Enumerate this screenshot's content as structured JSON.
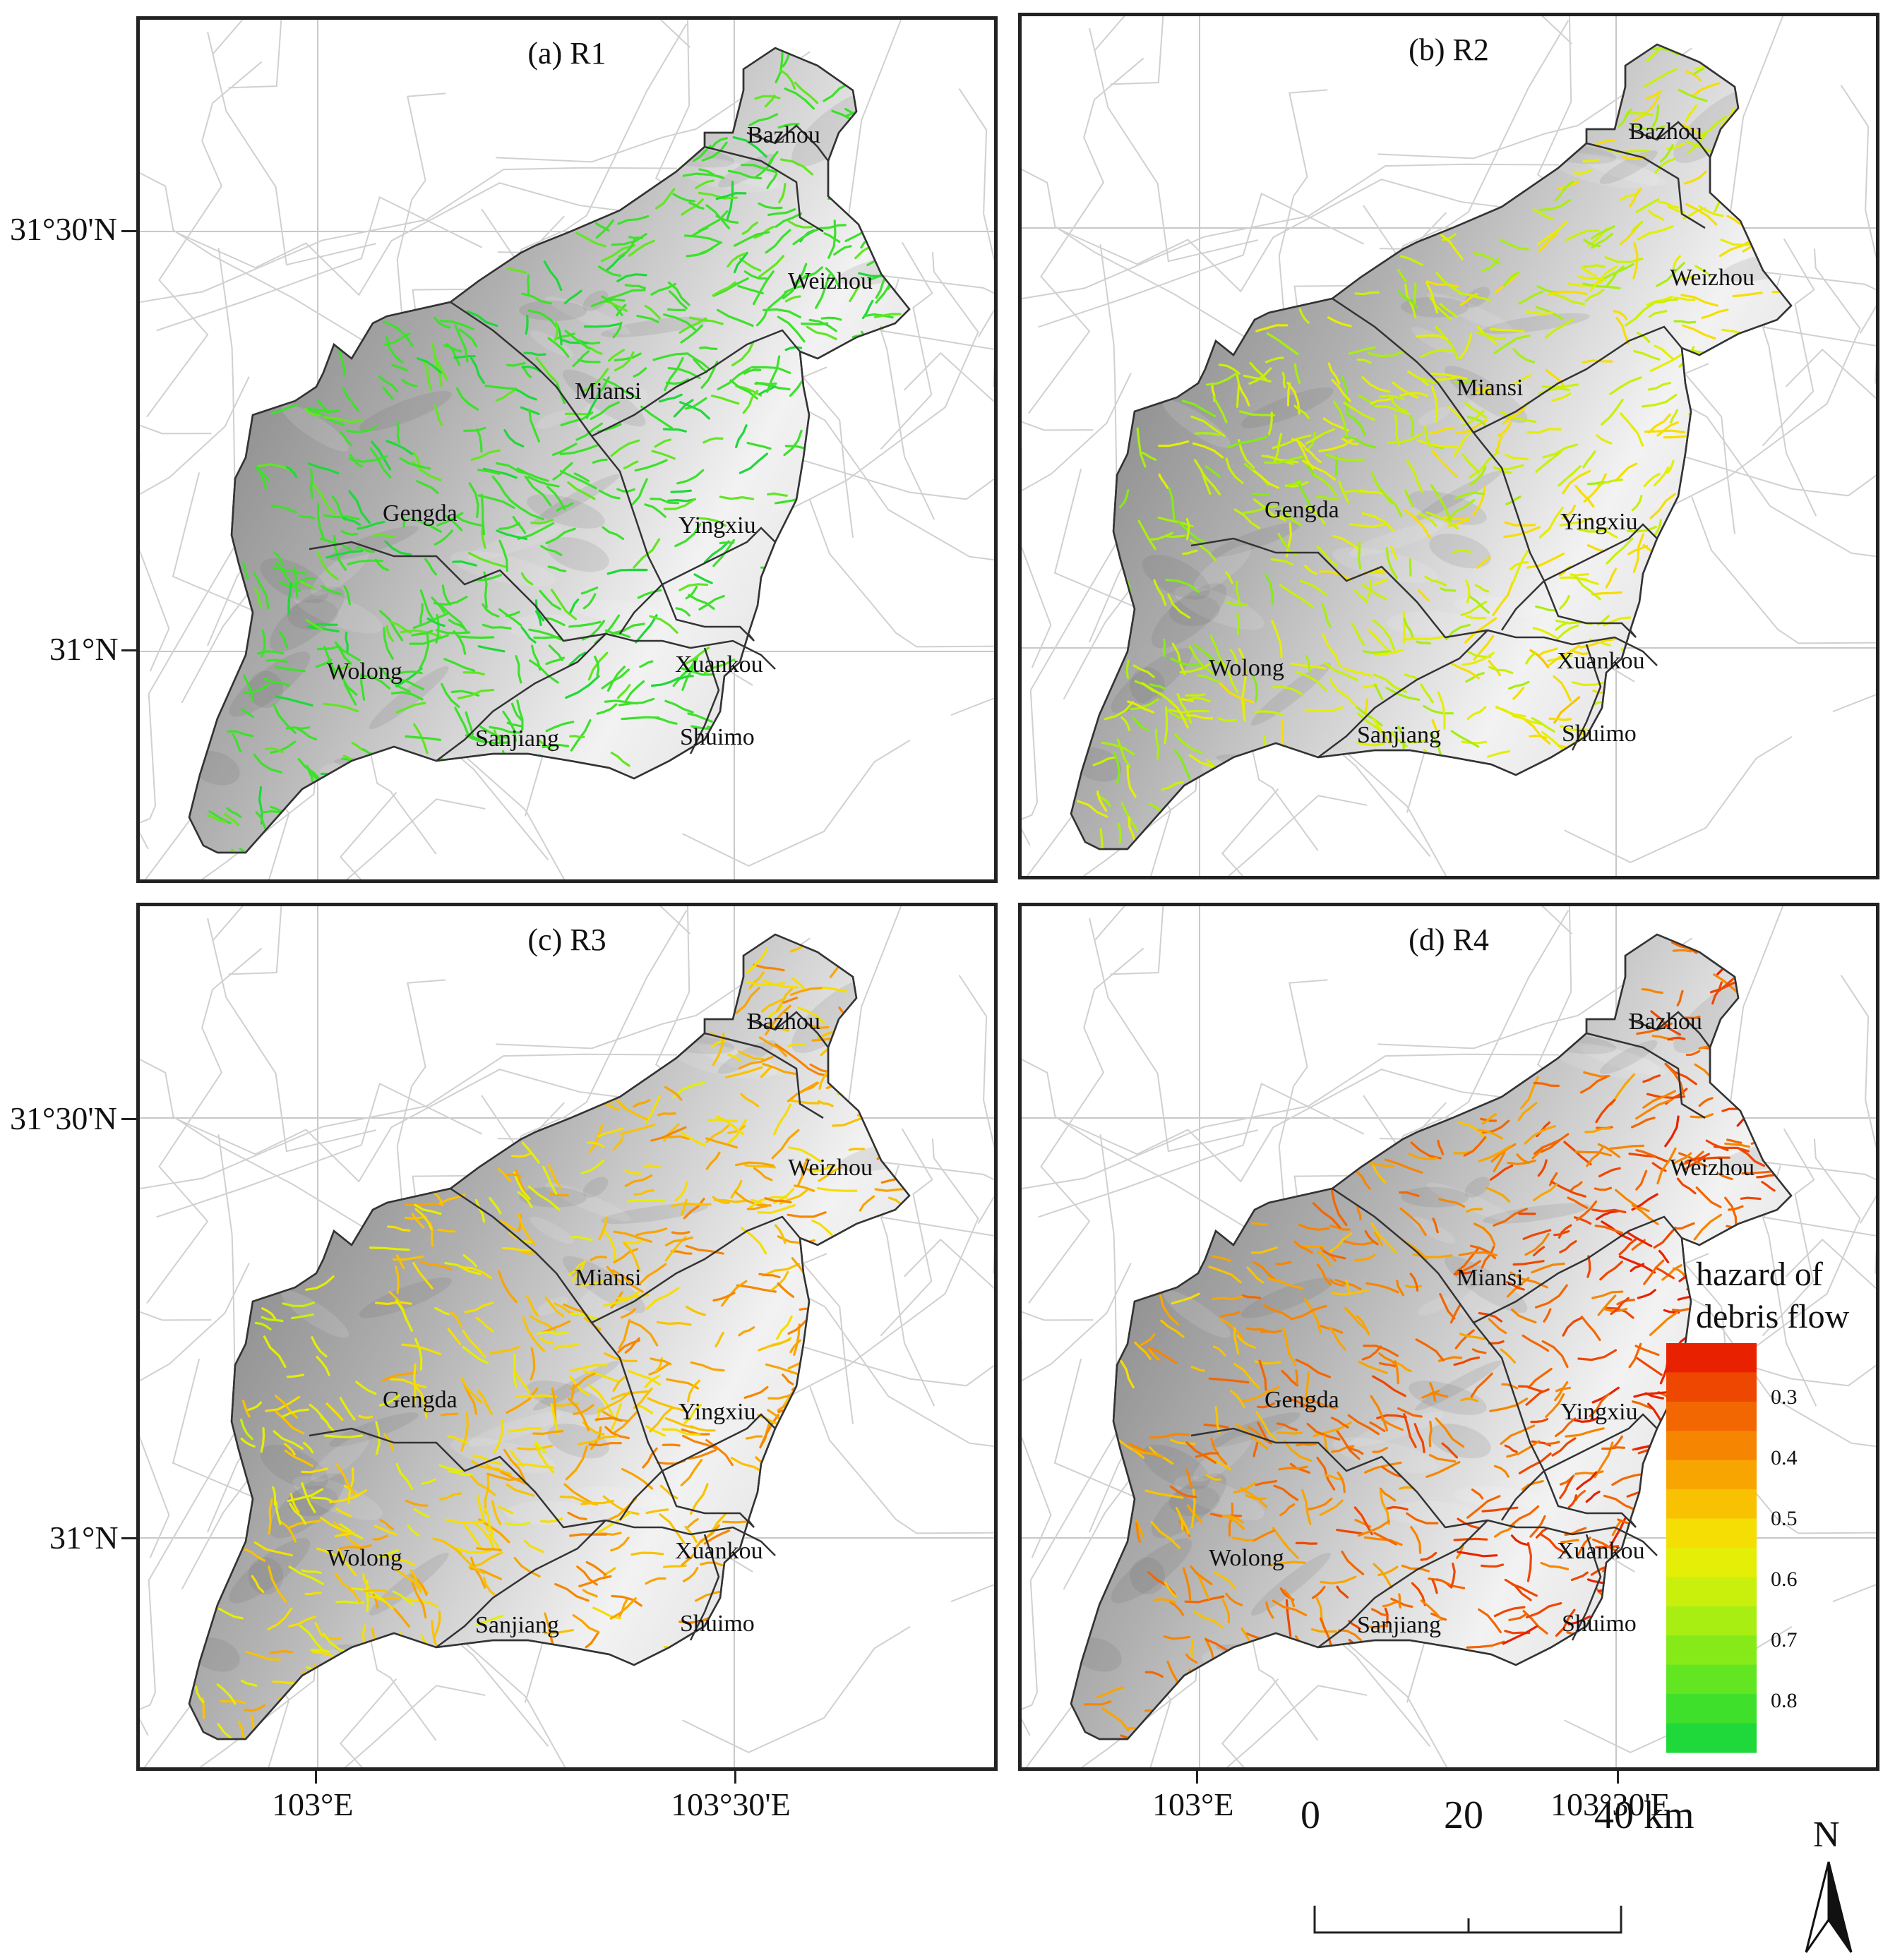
{
  "panels": [
    {
      "title": "(a) R1",
      "scheme": "R1"
    },
    {
      "title": "(b) R2",
      "scheme": "R2"
    },
    {
      "title": "(c) R3",
      "scheme": "R3"
    },
    {
      "title": "(d) R4",
      "scheme": "R4"
    }
  ],
  "towns": [
    {
      "name": "Bazhou"
    },
    {
      "name": "Weizhou"
    },
    {
      "name": "Miansi"
    },
    {
      "name": "Gengda"
    },
    {
      "name": "Yingxiu"
    },
    {
      "name": "Wolong"
    },
    {
      "name": "Xuankou"
    },
    {
      "name": "Sanjiang"
    },
    {
      "name": "Shuimo"
    }
  ],
  "axes": {
    "lat_labels": [
      "31°30'N",
      "31°N"
    ],
    "lon_labels": [
      "103°E",
      "103°30'E"
    ]
  },
  "legend": {
    "title_line1": "hazard of",
    "title_line2": "debris flow",
    "ticks": [
      "0.3",
      "0.4",
      "0.5",
      "0.6",
      "0.7",
      "0.8"
    ],
    "colors": [
      "#1fd83a",
      "#3ee02c",
      "#62e622",
      "#86ea19",
      "#a8ee12",
      "#c8f00c",
      "#e4ee07",
      "#f5de04",
      "#f8c203",
      "#f8a502",
      "#f68602",
      "#f26702",
      "#ee4701",
      "#e82201"
    ]
  },
  "scale_bar": {
    "labels": [
      "0",
      "20",
      "40 km"
    ]
  },
  "north_arrow": {
    "label": "N"
  },
  "colors": {
    "stream_low": "#28e03a",
    "stream_mid": "#d8ee10",
    "stream_high": "#f07010",
    "terrain_dark": "#6a6a6a",
    "terrain_light": "#f2f2f2"
  }
}
